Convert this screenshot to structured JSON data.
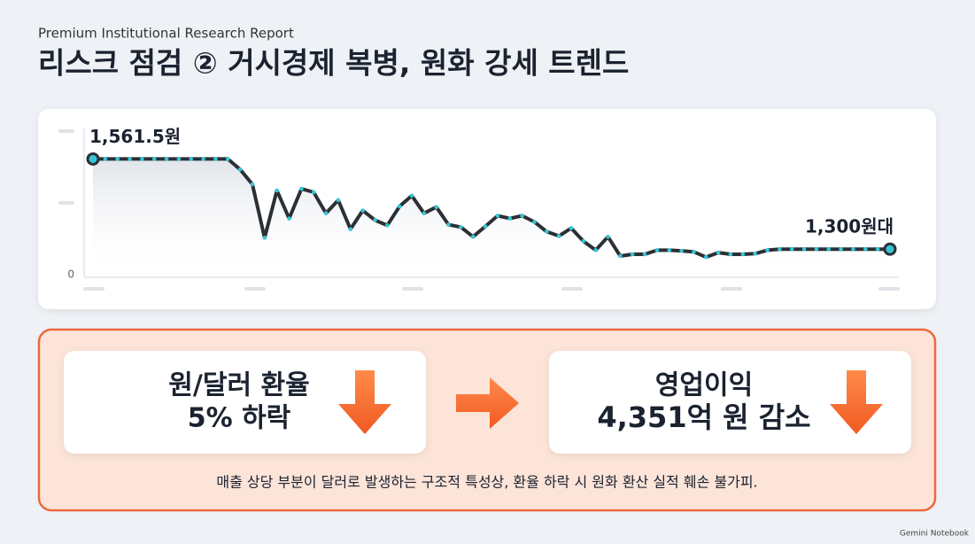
{
  "header": {
    "subtitle": "Premium Institutional Research Report",
    "title": "리스크 점검 ② 거시경제 복병, 원화 강세 트렌드"
  },
  "chart_data": {
    "type": "line",
    "baseline_label": "0",
    "ylim": [
      1226,
      1650
    ],
    "series": [
      {
        "color": "#2b3036",
        "values": [
          1561.5,
          1561.5,
          1561.5,
          1561.5,
          1561.5,
          1561.5,
          1561.5,
          1561.5,
          1561.5,
          1561.5,
          1561.5,
          1561.5,
          1531,
          1488,
          1333,
          1470,
          1389,
          1475,
          1465,
          1404,
          1442,
          1358,
          1412,
          1384,
          1369,
          1424,
          1455,
          1404,
          1422,
          1371,
          1364,
          1336,
          1366,
          1397,
          1389,
          1397,
          1379,
          1351,
          1338,
          1361,
          1323,
          1297,
          1336,
          1280,
          1285,
          1285,
          1297,
          1297,
          1295,
          1292,
          1277,
          1290,
          1285,
          1285,
          1287,
          1297,
          1300,
          1300,
          1300,
          1300,
          1300,
          1300,
          1300,
          1300,
          1300,
          1300
        ],
        "value_labels": [
          "1,561.5원",
          null,
          null,
          null,
          null,
          null,
          null,
          null,
          null,
          null,
          null,
          null,
          null,
          null,
          null,
          null,
          null,
          null,
          null,
          null,
          null,
          null,
          null,
          null,
          null,
          null,
          null,
          null,
          null,
          null,
          null,
          null,
          null,
          null,
          null,
          null,
          null,
          null,
          null,
          null,
          null,
          null,
          null,
          null,
          null,
          null,
          null,
          null,
          null,
          null,
          null,
          null,
          null,
          null,
          null,
          null,
          null,
          null,
          null,
          null,
          null,
          null,
          null,
          null,
          null,
          "1,300원대"
        ]
      }
    ],
    "marker_color": "#35c6d6"
  },
  "impact": {
    "left": [
      "원/달러 환율",
      "5% 하락"
    ],
    "right": [
      "영업이익",
      "4,351억 원 감소"
    ],
    "note": "매출 상당 부분이 달러로 발생하는 구조적 특성상, 환율 하락 시 원화 환산 실적 훼손 불가피."
  },
  "footer": "Gemini Notebook"
}
